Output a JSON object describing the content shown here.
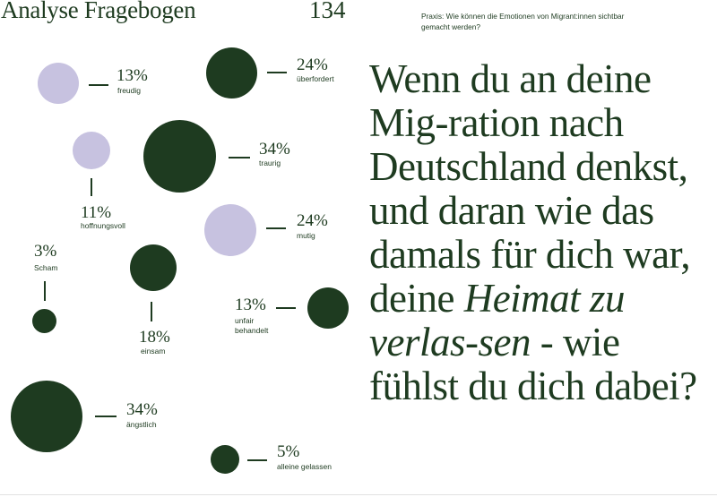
{
  "header": {
    "title": "Analyse Fragebogen",
    "page_number": "134",
    "subtitle": "Praxis: Wie können die Emotionen von Migrant:innen sichtbar gemacht werden?"
  },
  "question": {
    "part1": "Wenn du an deine Mig-ration nach Deutschland denkst, und daran wie das damals für dich war, deine ",
    "emphasis": "Heimat zu verlas-sen",
    "part2": " - wie fühlst du dich dabei?"
  },
  "colors": {
    "dark": "#1e3b20",
    "light": "#c7c2e0"
  },
  "emotions": [
    {
      "id": "freudig",
      "percent": "13%",
      "label": "freudig",
      "value": 13,
      "color": "light"
    },
    {
      "id": "ueberfordert",
      "percent": "24%",
      "label": "überfordert",
      "value": 24,
      "color": "dark"
    },
    {
      "id": "hoffnungsvoll",
      "percent": "11%",
      "label": "hoffnungsvoll",
      "value": 11,
      "color": "light"
    },
    {
      "id": "traurig",
      "percent": "34%",
      "label": "traurig",
      "value": 34,
      "color": "dark"
    },
    {
      "id": "mutig",
      "percent": "24%",
      "label": "mutig",
      "value": 24,
      "color": "light"
    },
    {
      "id": "scham",
      "percent": "3%",
      "label": "Scham",
      "value": 3,
      "color": "dark"
    },
    {
      "id": "einsam",
      "percent": "18%",
      "label": "einsam",
      "value": 18,
      "color": "dark"
    },
    {
      "id": "unfair",
      "percent": "13%",
      "label": "unfair behandelt",
      "value": 13,
      "color": "dark"
    },
    {
      "id": "aengstlich",
      "percent": "34%",
      "label": "ängstlich",
      "value": 34,
      "color": "dark"
    },
    {
      "id": "alleine",
      "percent": "5%",
      "label": "alleine gelassen",
      "value": 5,
      "color": "dark"
    }
  ]
}
